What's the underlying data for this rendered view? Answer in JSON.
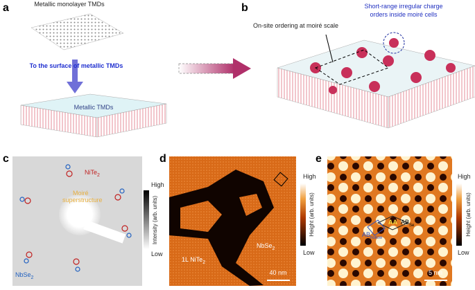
{
  "panel_a": {
    "label": "a",
    "top_text": "Metallic monolayer TMDs",
    "arrow_text": "To the surface of metallic TMDs",
    "bottom_text": "Metallic TMDs"
  },
  "panel_b": {
    "label": "b",
    "ordering_text": "On-site ordering at moiré scale",
    "charge_text": [
      "Short-range irregular charge",
      "orders inside moiré cells"
    ]
  },
  "panel_c": {
    "label": "c",
    "nite": {
      "main": "NiTe",
      "sub": "2"
    },
    "moire": [
      "Moiré",
      "superstructure"
    ],
    "nbse": {
      "main": "NbSe",
      "sub": "2"
    },
    "colorbar": {
      "high": "High",
      "low": "Low",
      "title": "Intensity (arb. units)"
    }
  },
  "panel_d": {
    "label": "d",
    "film": {
      "prefix": "1L ",
      "main": "NiTe",
      "sub": "2"
    },
    "nbse": {
      "main": "NbSe",
      "sub": "2"
    },
    "scale": "40 nm",
    "colorbar": {
      "high": "High",
      "low": "Low",
      "title": "Height (arb. units)"
    }
  },
  "panel_e": {
    "label": "e",
    "aa": "AA",
    "ab_se": {
      "main": "AB",
      "sub": "Se"
    },
    "ab_hollow": {
      "main": "AB",
      "sub": "hollow"
    },
    "scale": "5 nm",
    "colorbar": {
      "high": "High",
      "low": "Low",
      "title": "Height (arb. units)"
    }
  }
}
